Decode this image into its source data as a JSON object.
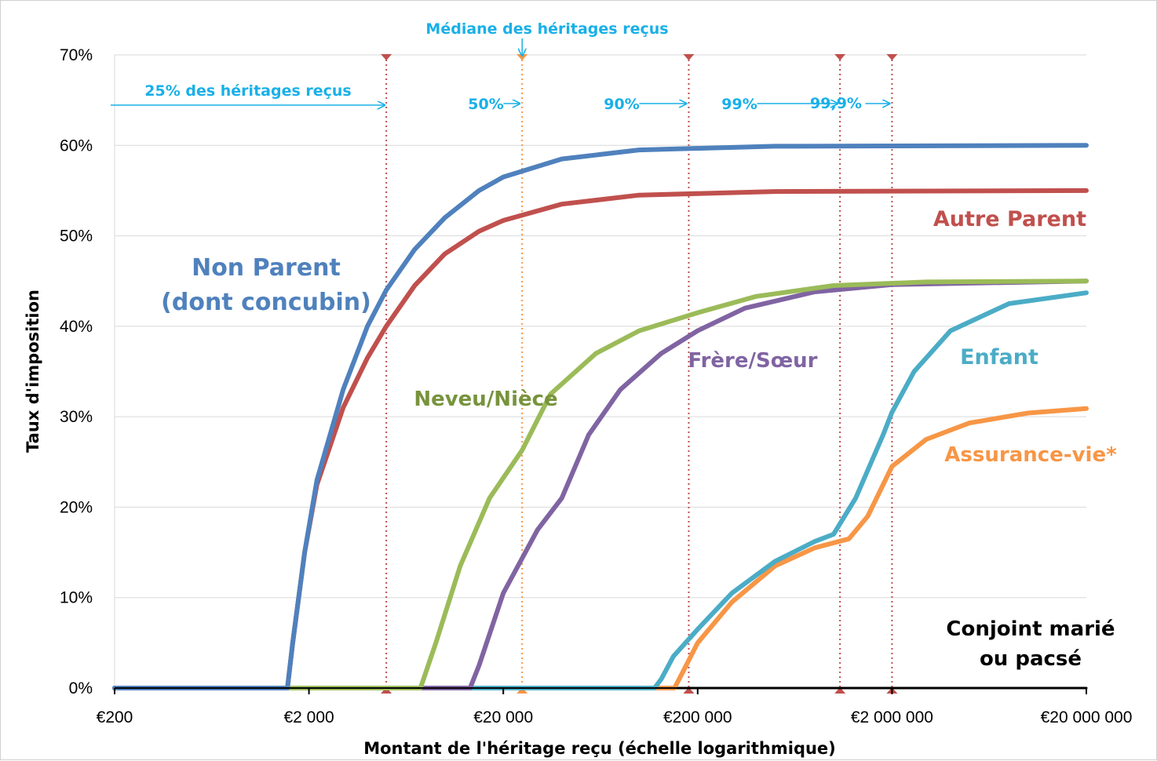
{
  "chart_data": {
    "type": "line",
    "xlabel": "Montant de l'héritage reçu (échelle logarithmique)",
    "ylabel": "Taux d'imposition",
    "x_scale": "log",
    "xlim": [
      200,
      20000000
    ],
    "ylim": [
      0,
      70
    ],
    "x_ticks": [
      {
        "value": 200,
        "label": "€200"
      },
      {
        "value": 2000,
        "label": "€2 000"
      },
      {
        "value": 20000,
        "label": "€20 000"
      },
      {
        "value": 200000,
        "label": "€200 000"
      },
      {
        "value": 2000000,
        "label": "€2 000 000"
      },
      {
        "value": 20000000,
        "label": "€20 000 000"
      }
    ],
    "y_ticks": [
      {
        "value": 0,
        "label": "0%"
      },
      {
        "value": 10,
        "label": "10%"
      },
      {
        "value": 20,
        "label": "20%"
      },
      {
        "value": 30,
        "label": "30%"
      },
      {
        "value": 40,
        "label": "40%"
      },
      {
        "value": 50,
        "label": "50%"
      },
      {
        "value": 60,
        "label": "60%"
      },
      {
        "value": 70,
        "label": "70%"
      }
    ],
    "grid": "horizontal",
    "series": [
      {
        "name": "Conjoint marié ou pacsé",
        "label_lines": [
          "Conjoint marié",
          "ou pacsé"
        ],
        "color": "#000000",
        "label_color": "#000000",
        "points": [
          [
            200,
            0
          ],
          [
            20000000,
            0
          ]
        ]
      },
      {
        "name": "Assurance-vie*",
        "label_lines": [
          "Assurance-vie*"
        ],
        "color": "#f79646",
        "label_color": "#f79646",
        "points": [
          [
            200,
            0
          ],
          [
            152000,
            0
          ],
          [
            170000,
            2
          ],
          [
            200000,
            5
          ],
          [
            300000,
            9.5
          ],
          [
            500000,
            13.5
          ],
          [
            800000,
            15.5
          ],
          [
            1200000,
            16.5
          ],
          [
            1500000,
            19
          ],
          [
            2000000,
            24.5
          ],
          [
            3000000,
            27.5
          ],
          [
            5000000,
            29.3
          ],
          [
            10000000,
            30.4
          ],
          [
            20000000,
            30.9
          ]
        ]
      },
      {
        "name": "Enfant",
        "label_lines": [
          "Enfant"
        ],
        "color": "#4bacc6",
        "label_color": "#4bacc6",
        "points": [
          [
            200,
            0
          ],
          [
            120000,
            0
          ],
          [
            130000,
            1
          ],
          [
            150000,
            3.5
          ],
          [
            200000,
            6.5
          ],
          [
            300000,
            10.5
          ],
          [
            500000,
            14
          ],
          [
            800000,
            16.2
          ],
          [
            1000000,
            17
          ],
          [
            1300000,
            21
          ],
          [
            1800000,
            28
          ],
          [
            2000000,
            30.5
          ],
          [
            2600000,
            35
          ],
          [
            4000000,
            39.5
          ],
          [
            8000000,
            42.5
          ],
          [
            20000000,
            43.7
          ]
        ]
      },
      {
        "name": "Frère/Sœur",
        "label_lines": [
          "Frère/Sœur"
        ],
        "color": "#8064a2",
        "label_color": "#8064a2",
        "points": [
          [
            200,
            0
          ],
          [
            13500,
            0
          ],
          [
            15000,
            2.5
          ],
          [
            20000,
            10.5
          ],
          [
            30000,
            17.5
          ],
          [
            40000,
            21
          ],
          [
            55000,
            28
          ],
          [
            80000,
            33
          ],
          [
            130000,
            37
          ],
          [
            200000,
            39.5
          ],
          [
            350000,
            42
          ],
          [
            800000,
            43.8
          ],
          [
            2000000,
            44.6
          ],
          [
            20000000,
            45
          ]
        ]
      },
      {
        "name": "Neveu/Nièce",
        "label_lines": [
          "Neveu/Nièce"
        ],
        "color": "#9bbb59",
        "label_color": "#77933c",
        "points": [
          [
            200,
            0
          ],
          [
            7500,
            0
          ],
          [
            9000,
            5
          ],
          [
            12000,
            13.5
          ],
          [
            17000,
            21
          ],
          [
            25000,
            26.3
          ],
          [
            35000,
            32.5
          ],
          [
            60000,
            37
          ],
          [
            100000,
            39.5
          ],
          [
            200000,
            41.5
          ],
          [
            400000,
            43.3
          ],
          [
            1000000,
            44.5
          ],
          [
            3000000,
            44.9
          ],
          [
            20000000,
            45
          ]
        ]
      },
      {
        "name": "Autre Parent",
        "label_lines": [
          "Autre Parent"
        ],
        "color": "#c0504d",
        "label_color": "#c0504d",
        "points": [
          [
            200,
            0
          ],
          [
            1550,
            0
          ],
          [
            1650,
            5
          ],
          [
            1900,
            15
          ],
          [
            2200,
            22.5
          ],
          [
            3000,
            31
          ],
          [
            4000,
            36.5
          ],
          [
            5000,
            40
          ],
          [
            7000,
            44.5
          ],
          [
            10000,
            48
          ],
          [
            15000,
            50.5
          ],
          [
            20000,
            51.7
          ],
          [
            40000,
            53.5
          ],
          [
            100000,
            54.5
          ],
          [
            500000,
            54.9
          ],
          [
            20000000,
            55
          ]
        ]
      },
      {
        "name": "Non Parent (dont concubin)",
        "label_lines": [
          "Non Parent",
          "(dont concubin)"
        ],
        "color": "#4f81bd",
        "label_color": "#4f81bd",
        "points": [
          [
            200,
            0
          ],
          [
            1550,
            0
          ],
          [
            1650,
            5
          ],
          [
            1900,
            15
          ],
          [
            2200,
            23
          ],
          [
            3000,
            33
          ],
          [
            4000,
            40
          ],
          [
            5000,
            44
          ],
          [
            7000,
            48.5
          ],
          [
            10000,
            52
          ],
          [
            15000,
            55
          ],
          [
            20000,
            56.5
          ],
          [
            40000,
            58.5
          ],
          [
            100000,
            59.5
          ],
          [
            500000,
            59.9
          ],
          [
            20000000,
            60
          ]
        ]
      }
    ],
    "markers": [
      {
        "x": 5000,
        "label": "25% des héritages reçus",
        "color": "#c0504d"
      },
      {
        "x": 25000,
        "label": "50%",
        "color": "#f79646"
      },
      {
        "x": 180000,
        "label": "90%",
        "color": "#c0504d"
      },
      {
        "x": 1080000,
        "label": "99%",
        "color": "#c0504d"
      },
      {
        "x": 2000000,
        "label": "99,9%",
        "color": "#c0504d"
      }
    ],
    "median_annotation": "Médiane des héritages reçus",
    "annotation_color": "#19b0e8"
  }
}
